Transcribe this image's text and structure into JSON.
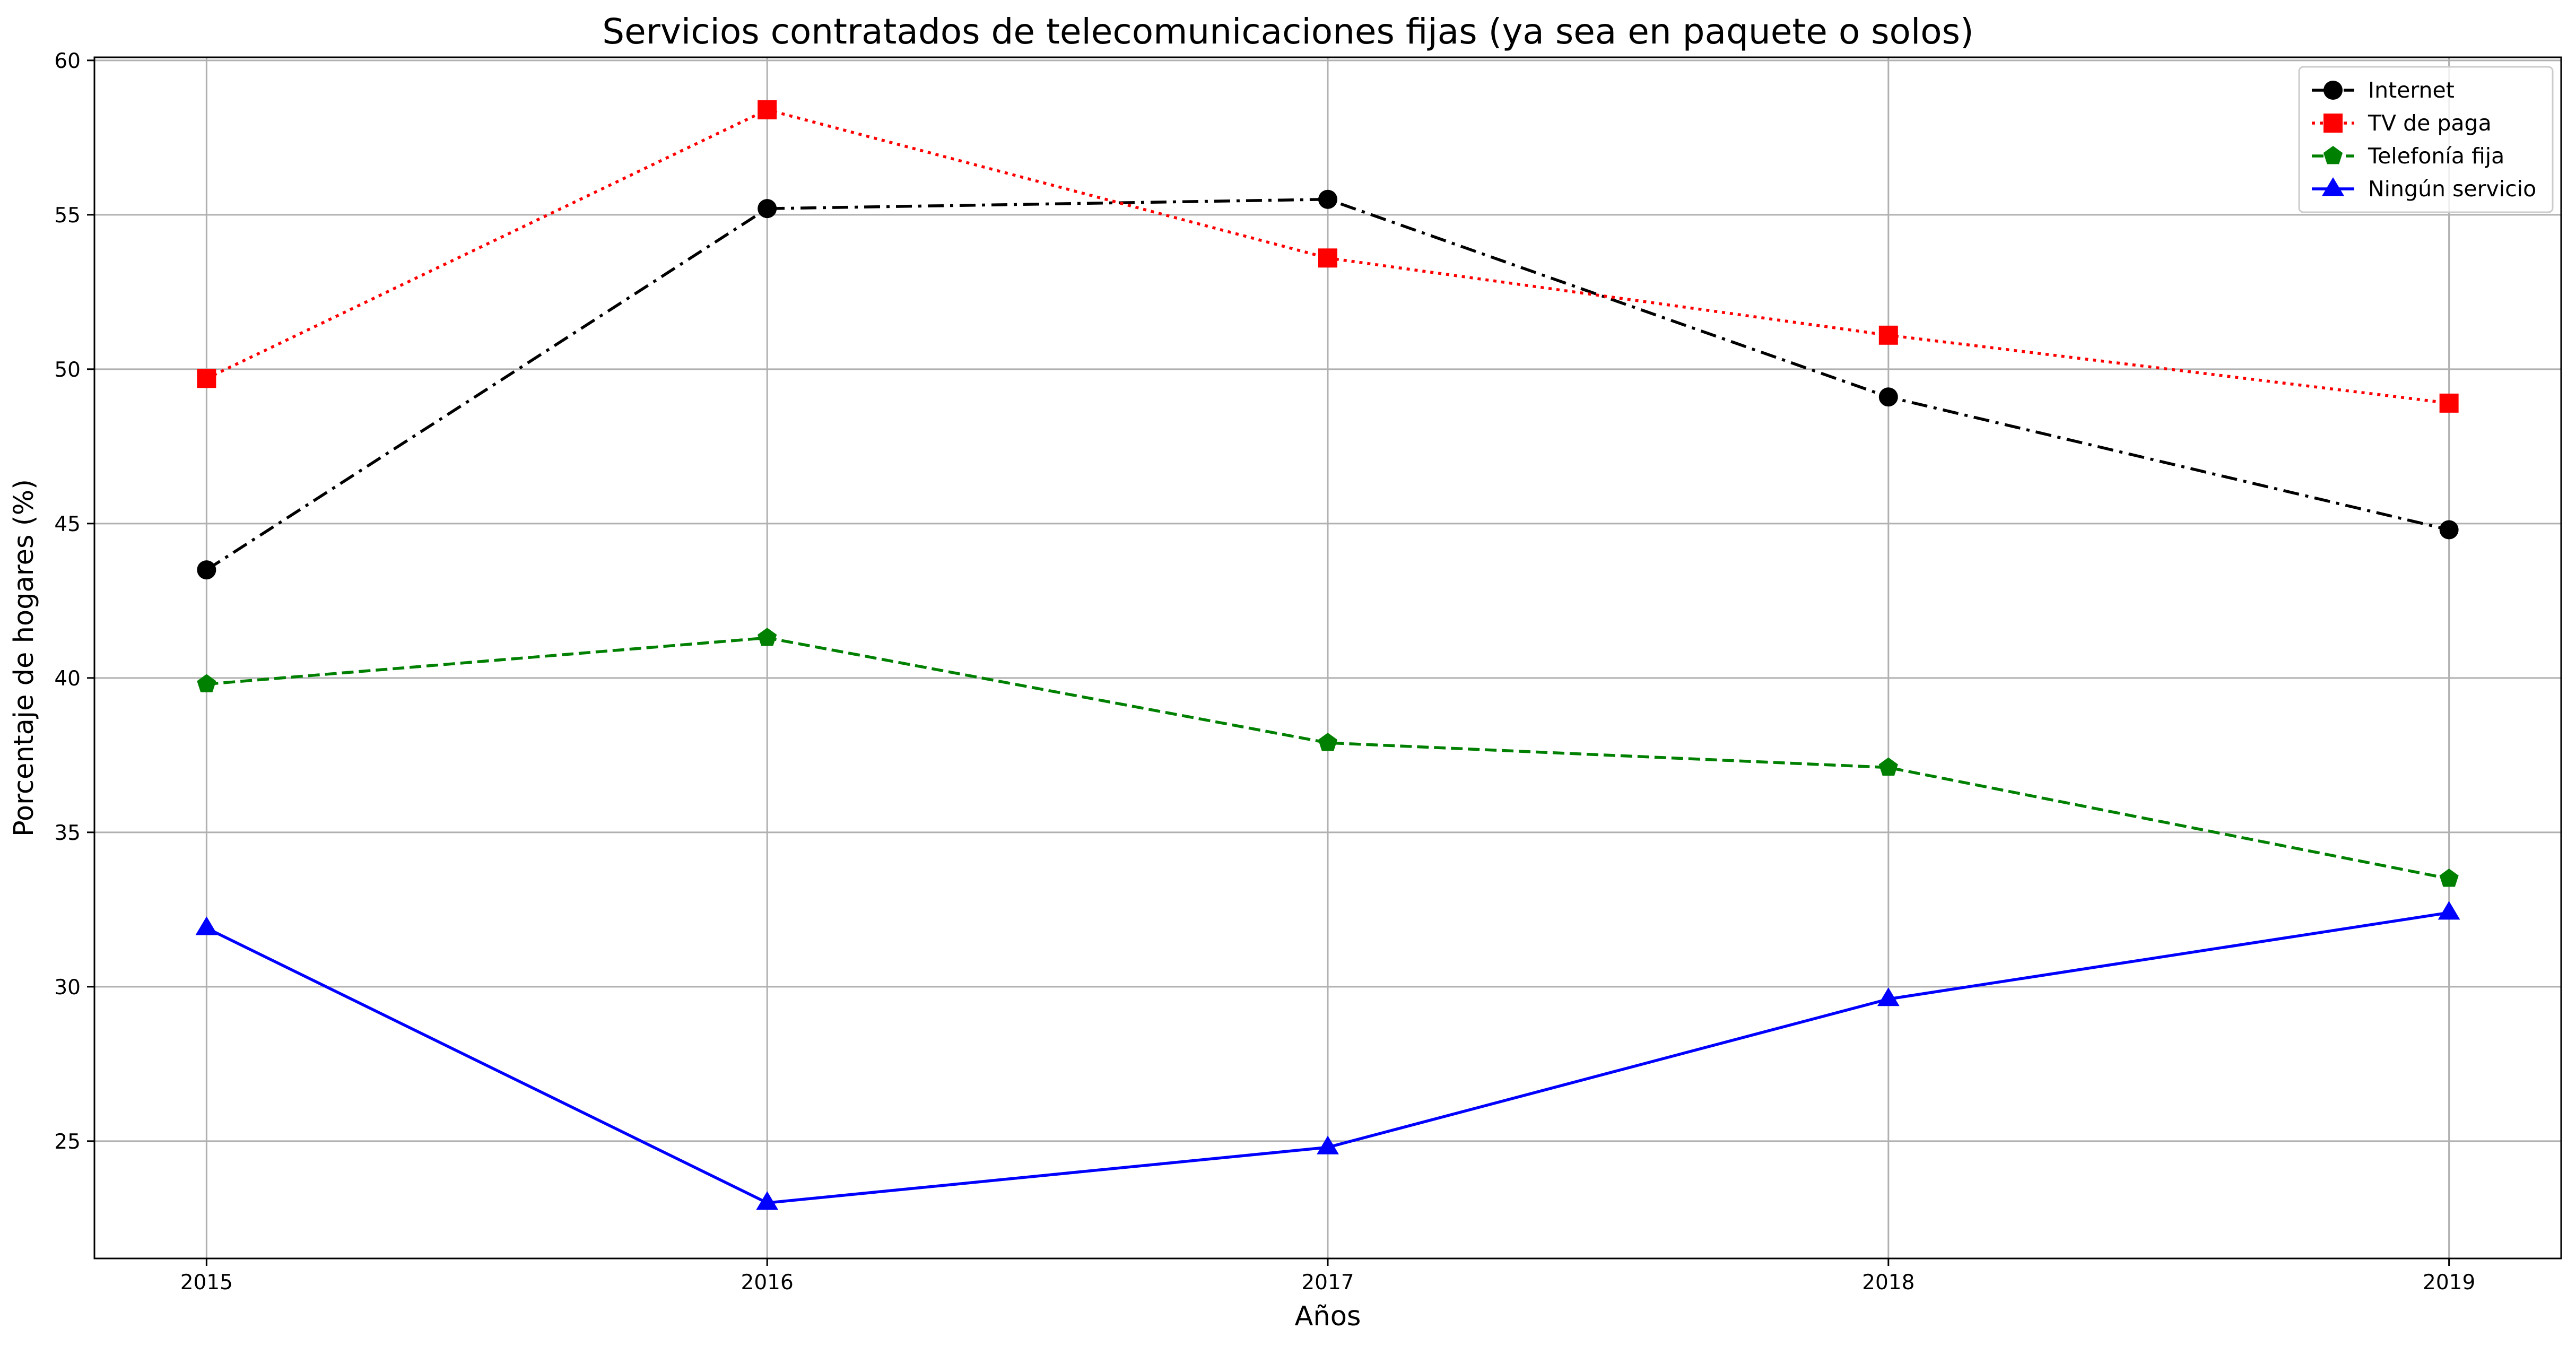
{
  "chart_data": {
    "type": "line",
    "title": "Servicios contratados de telecomunicaciones fijas (ya sea en paquete o solos)",
    "xlabel": "Años",
    "ylabel": "Porcentaje de hogares (%)",
    "x": [
      "2015",
      "2016",
      "2017",
      "2018",
      "2019"
    ],
    "xlim": [
      2014.8,
      2019.2
    ],
    "ylim": [
      21.2,
      60.1
    ],
    "yticks": [
      25,
      30,
      35,
      40,
      45,
      50,
      55,
      60
    ],
    "grid": true,
    "legend_position": "top-right",
    "series": [
      {
        "name": "Internet",
        "values": [
          43.5,
          55.2,
          55.5,
          49.1,
          44.8
        ],
        "color": "#000000",
        "marker": "circle",
        "linestyle": "dash-dot"
      },
      {
        "name": "TV de paga",
        "values": [
          49.7,
          58.4,
          53.6,
          51.1,
          48.9
        ],
        "color": "#ff0000",
        "marker": "square",
        "linestyle": "dotted"
      },
      {
        "name": "Telefonía fija",
        "values": [
          39.8,
          41.3,
          37.9,
          37.1,
          33.5
        ],
        "color": "#008000",
        "marker": "pentagon",
        "linestyle": "dashed"
      },
      {
        "name": "Ningún servicio",
        "values": [
          31.9,
          23.0,
          24.8,
          29.6,
          32.4
        ],
        "color": "#0000ff",
        "marker": "triangle",
        "linestyle": "solid"
      }
    ]
  }
}
